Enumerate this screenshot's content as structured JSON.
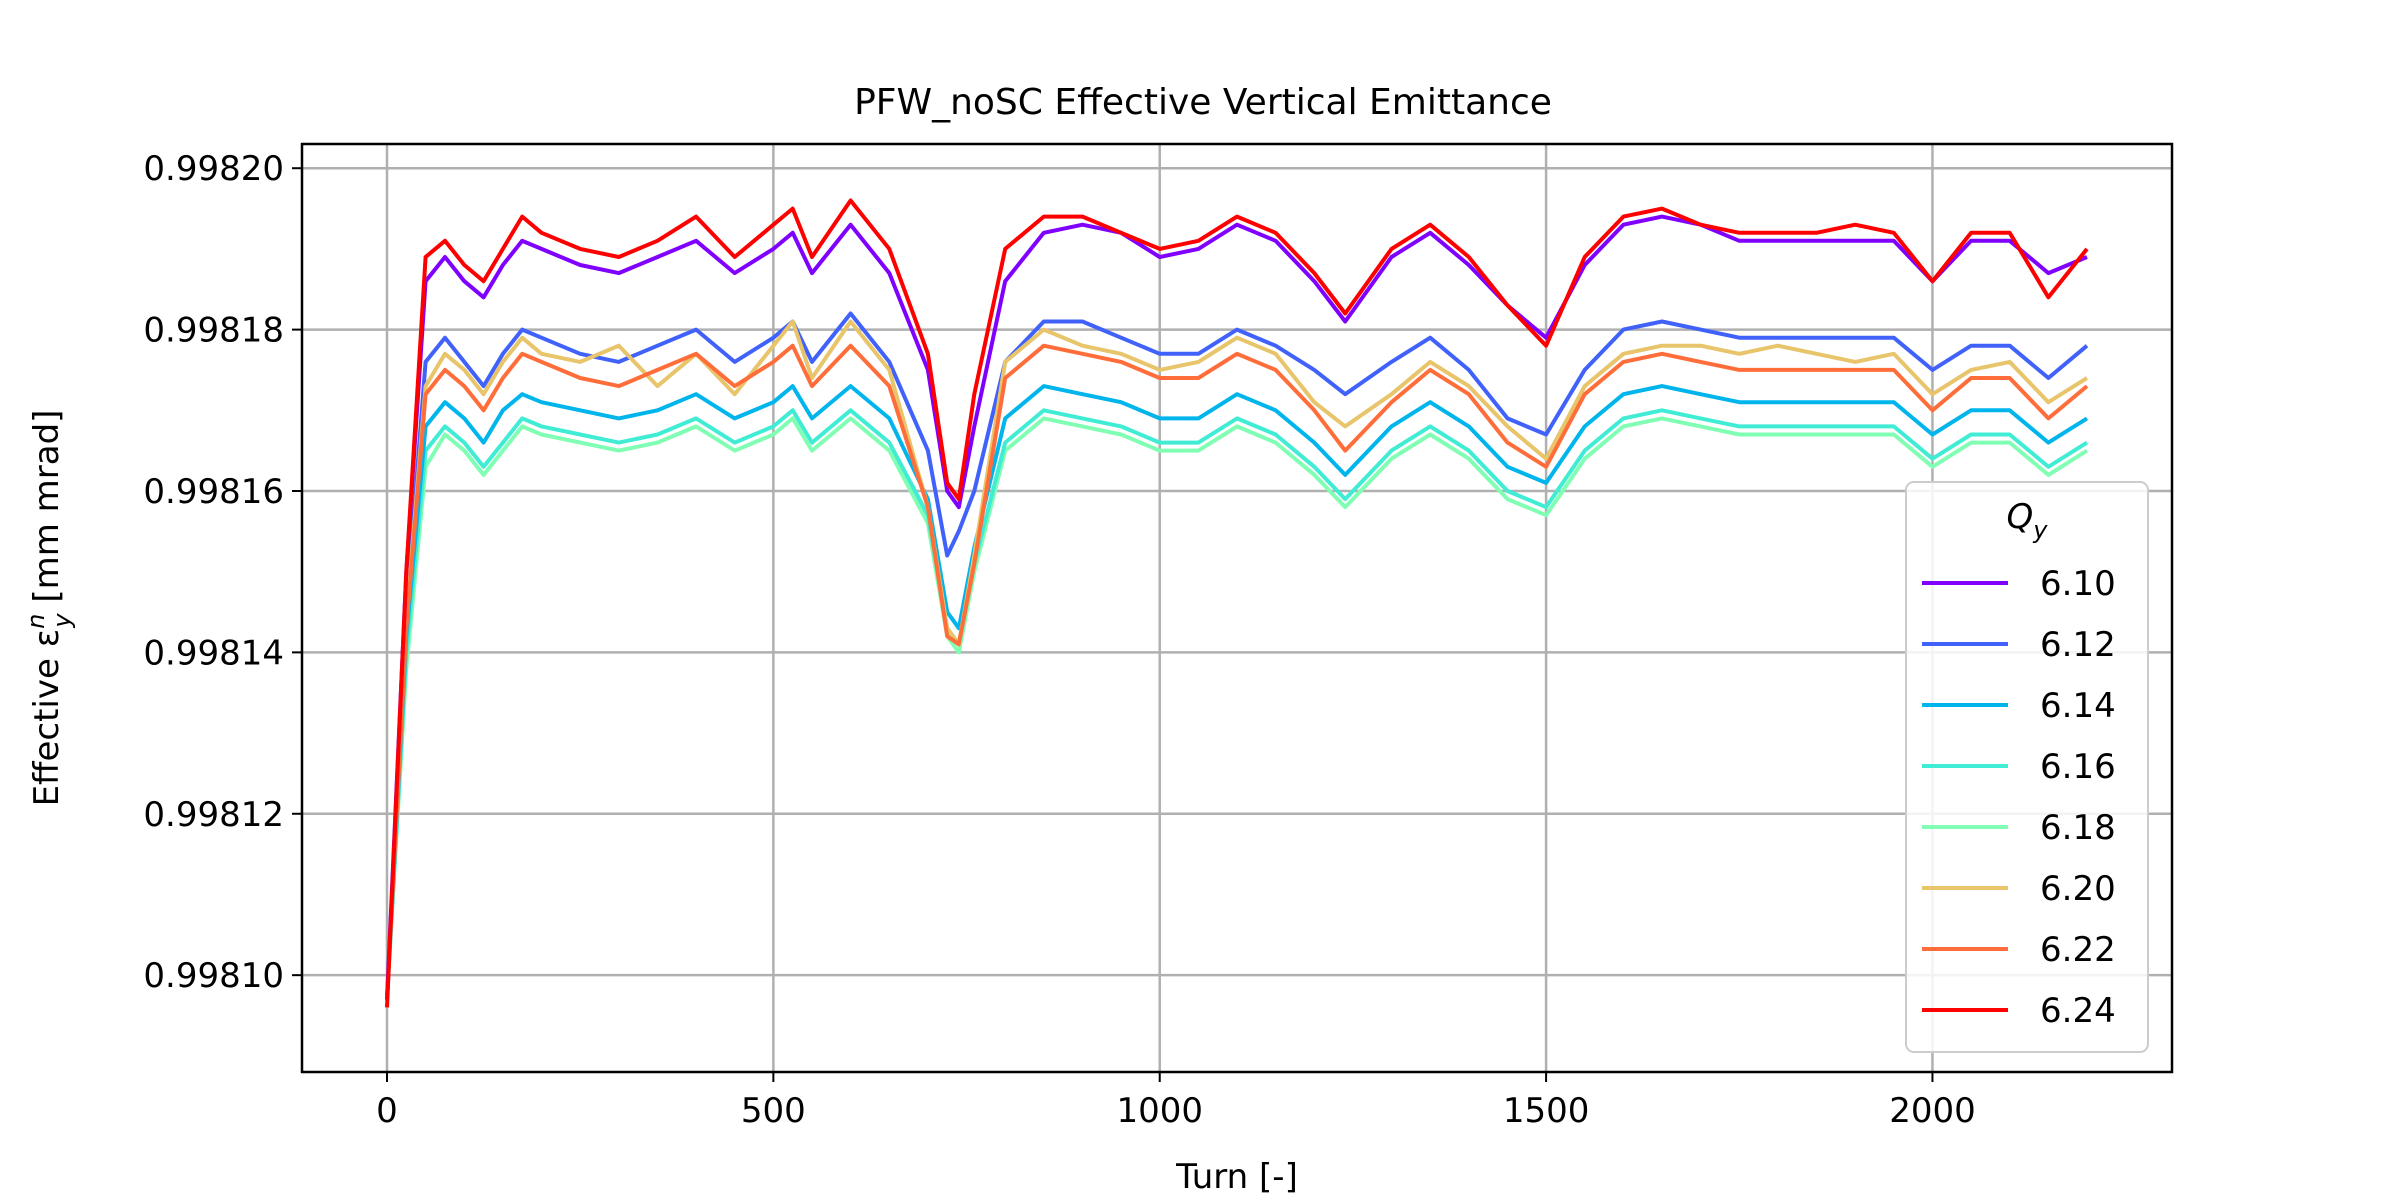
{
  "chart_data": {
    "type": "line",
    "title": "PFW_noSC Effective Vertical Emittance",
    "xlabel": "Turn [-]",
    "ylabel": "Effective ε",
    "ylabel_sub": "y",
    "ylabel_sup": "n",
    "ylabel_unit": " [mm mrad]",
    "xlim": [
      -110,
      2310
    ],
    "ylim": [
      0.998088,
      0.998203
    ],
    "xticks": [
      0,
      500,
      1000,
      1500,
      2000
    ],
    "xtick_labels": [
      "0",
      "500",
      "1000",
      "1500",
      "2000"
    ],
    "yticks": [
      0.9981,
      0.99812,
      0.99814,
      0.99816,
      0.99818,
      0.9982
    ],
    "ytick_labels": [
      "0.99810",
      "0.99812",
      "0.99814",
      "0.99816",
      "0.99818",
      "0.99820"
    ],
    "grid": true,
    "legend_title": "Q",
    "legend_title_sub": "y",
    "legend_position": "lower-right",
    "x": [
      0,
      25,
      50,
      75,
      100,
      125,
      150,
      175,
      200,
      250,
      300,
      350,
      400,
      450,
      500,
      525,
      550,
      600,
      650,
      700,
      725,
      740,
      760,
      800,
      850,
      900,
      950,
      1000,
      1050,
      1100,
      1150,
      1200,
      1240,
      1300,
      1350,
      1400,
      1450,
      1500,
      1550,
      1600,
      1650,
      1700,
      1750,
      1800,
      1850,
      1900,
      1950,
      2000,
      2050,
      2100,
      2150,
      2200
    ],
    "series": [
      {
        "name": "6.10",
        "color": "#8000ff",
        "values": [
          0.998097,
          0.99815,
          0.998186,
          0.998189,
          0.998186,
          0.998184,
          0.998188,
          0.998191,
          0.99819,
          0.998188,
          0.998187,
          0.998189,
          0.998191,
          0.998187,
          0.99819,
          0.998192,
          0.998187,
          0.998193,
          0.998187,
          0.998175,
          0.99816,
          0.998158,
          0.998168,
          0.998186,
          0.998192,
          0.998193,
          0.998192,
          0.998189,
          0.99819,
          0.998193,
          0.998191,
          0.998186,
          0.998181,
          0.998189,
          0.998192,
          0.998188,
          0.998183,
          0.998179,
          0.998188,
          0.998193,
          0.998194,
          0.998193,
          0.998191,
          0.998191,
          0.998191,
          0.998191,
          0.998191,
          0.998186,
          0.998191,
          0.998191,
          0.998187,
          0.998189
        ]
      },
      {
        "name": "6.12",
        "color": "#4062fa",
        "values": [
          0.998097,
          0.998145,
          0.998176,
          0.998179,
          0.998176,
          0.998173,
          0.998177,
          0.99818,
          0.998179,
          0.998177,
          0.998176,
          0.998178,
          0.99818,
          0.998176,
          0.998179,
          0.998181,
          0.998176,
          0.998182,
          0.998176,
          0.998165,
          0.998152,
          0.998155,
          0.99816,
          0.998176,
          0.998181,
          0.998181,
          0.998179,
          0.998177,
          0.998177,
          0.99818,
          0.998178,
          0.998175,
          0.998172,
          0.998176,
          0.998179,
          0.998175,
          0.998169,
          0.998167,
          0.998175,
          0.99818,
          0.998181,
          0.99818,
          0.998179,
          0.998179,
          0.998179,
          0.998179,
          0.998179,
          0.998175,
          0.998178,
          0.998178,
          0.998174,
          0.998178
        ]
      },
      {
        "name": "6.14",
        "color": "#00b5eb",
        "values": [
          0.998097,
          0.998142,
          0.998168,
          0.998171,
          0.998169,
          0.998166,
          0.99817,
          0.998172,
          0.998171,
          0.99817,
          0.998169,
          0.99817,
          0.998172,
          0.998169,
          0.998171,
          0.998173,
          0.998169,
          0.998173,
          0.998169,
          0.998159,
          0.998145,
          0.998143,
          0.998153,
          0.998169,
          0.998173,
          0.998172,
          0.998171,
          0.998169,
          0.998169,
          0.998172,
          0.99817,
          0.998166,
          0.998162,
          0.998168,
          0.998171,
          0.998168,
          0.998163,
          0.998161,
          0.998168,
          0.998172,
          0.998173,
          0.998172,
          0.998171,
          0.998171,
          0.998171,
          0.998171,
          0.998171,
          0.998167,
          0.99817,
          0.99817,
          0.998166,
          0.998169
        ]
      },
      {
        "name": "6.16",
        "color": "#40ecd4",
        "values": [
          0.998097,
          0.99814,
          0.998165,
          0.998168,
          0.998166,
          0.998163,
          0.998166,
          0.998169,
          0.998168,
          0.998167,
          0.998166,
          0.998167,
          0.998169,
          0.998166,
          0.998168,
          0.99817,
          0.998166,
          0.99817,
          0.998166,
          0.998157,
          0.998143,
          0.998141,
          0.998151,
          0.998166,
          0.99817,
          0.998169,
          0.998168,
          0.998166,
          0.998166,
          0.998169,
          0.998167,
          0.998163,
          0.998159,
          0.998165,
          0.998168,
          0.998165,
          0.99816,
          0.998158,
          0.998165,
          0.998169,
          0.99817,
          0.998169,
          0.998168,
          0.998168,
          0.998168,
          0.998168,
          0.998168,
          0.998164,
          0.998167,
          0.998167,
          0.998163,
          0.998166
        ]
      },
      {
        "name": "6.18",
        "color": "#80ffb4",
        "values": [
          0.998097,
          0.998138,
          0.998163,
          0.998167,
          0.998165,
          0.998162,
          0.998165,
          0.998168,
          0.998167,
          0.998166,
          0.998165,
          0.998166,
          0.998168,
          0.998165,
          0.998167,
          0.998169,
          0.998165,
          0.998169,
          0.998165,
          0.998156,
          0.998142,
          0.99814,
          0.99815,
          0.998165,
          0.998169,
          0.998168,
          0.998167,
          0.998165,
          0.998165,
          0.998168,
          0.998166,
          0.998162,
          0.998158,
          0.998164,
          0.998167,
          0.998164,
          0.998159,
          0.998157,
          0.998164,
          0.998168,
          0.998169,
          0.998168,
          0.998167,
          0.998167,
          0.998167,
          0.998167,
          0.998167,
          0.998163,
          0.998166,
          0.998166,
          0.998162,
          0.998165
        ]
      },
      {
        "name": "6.20",
        "color": "#e8c46a",
        "values": [
          0.998097,
          0.998144,
          0.998173,
          0.998177,
          0.998175,
          0.998172,
          0.998176,
          0.998179,
          0.998177,
          0.998176,
          0.998178,
          0.998173,
          0.998177,
          0.998172,
          0.998178,
          0.998181,
          0.998174,
          0.998181,
          0.998175,
          0.998158,
          0.998143,
          0.998141,
          0.998152,
          0.998176,
          0.99818,
          0.998178,
          0.998177,
          0.998175,
          0.998176,
          0.998179,
          0.998177,
          0.998171,
          0.998168,
          0.998172,
          0.998176,
          0.998173,
          0.998168,
          0.998164,
          0.998173,
          0.998177,
          0.998178,
          0.998178,
          0.998177,
          0.998178,
          0.998177,
          0.998176,
          0.998177,
          0.998172,
          0.998175,
          0.998176,
          0.998171,
          0.998174
        ]
      },
      {
        "name": "6.22",
        "color": "#ff6e3a",
        "values": [
          0.998097,
          0.998143,
          0.998172,
          0.998175,
          0.998173,
          0.99817,
          0.998174,
          0.998177,
          0.998176,
          0.998174,
          0.998173,
          0.998175,
          0.998177,
          0.998173,
          0.998176,
          0.998178,
          0.998173,
          0.998178,
          0.998173,
          0.998158,
          0.998142,
          0.998141,
          0.998151,
          0.998174,
          0.998178,
          0.998177,
          0.998176,
          0.998174,
          0.998174,
          0.998177,
          0.998175,
          0.99817,
          0.998165,
          0.998171,
          0.998175,
          0.998172,
          0.998166,
          0.998163,
          0.998172,
          0.998176,
          0.998177,
          0.998176,
          0.998175,
          0.998175,
          0.998175,
          0.998175,
          0.998175,
          0.99817,
          0.998174,
          0.998174,
          0.998169,
          0.998173
        ]
      },
      {
        "name": "6.24",
        "color": "#ff0000",
        "values": [
          0.998096,
          0.99815,
          0.998189,
          0.998191,
          0.998188,
          0.998186,
          0.99819,
          0.998194,
          0.998192,
          0.99819,
          0.998189,
          0.998191,
          0.998194,
          0.998189,
          0.998193,
          0.998195,
          0.998189,
          0.998196,
          0.99819,
          0.998177,
          0.998161,
          0.998159,
          0.998172,
          0.99819,
          0.998194,
          0.998194,
          0.998192,
          0.99819,
          0.998191,
          0.998194,
          0.998192,
          0.998187,
          0.998182,
          0.99819,
          0.998193,
          0.998189,
          0.998183,
          0.998178,
          0.998189,
          0.998194,
          0.998195,
          0.998193,
          0.998192,
          0.998192,
          0.998192,
          0.998193,
          0.998192,
          0.998186,
          0.998192,
          0.998192,
          0.998184,
          0.99819
        ]
      }
    ]
  }
}
